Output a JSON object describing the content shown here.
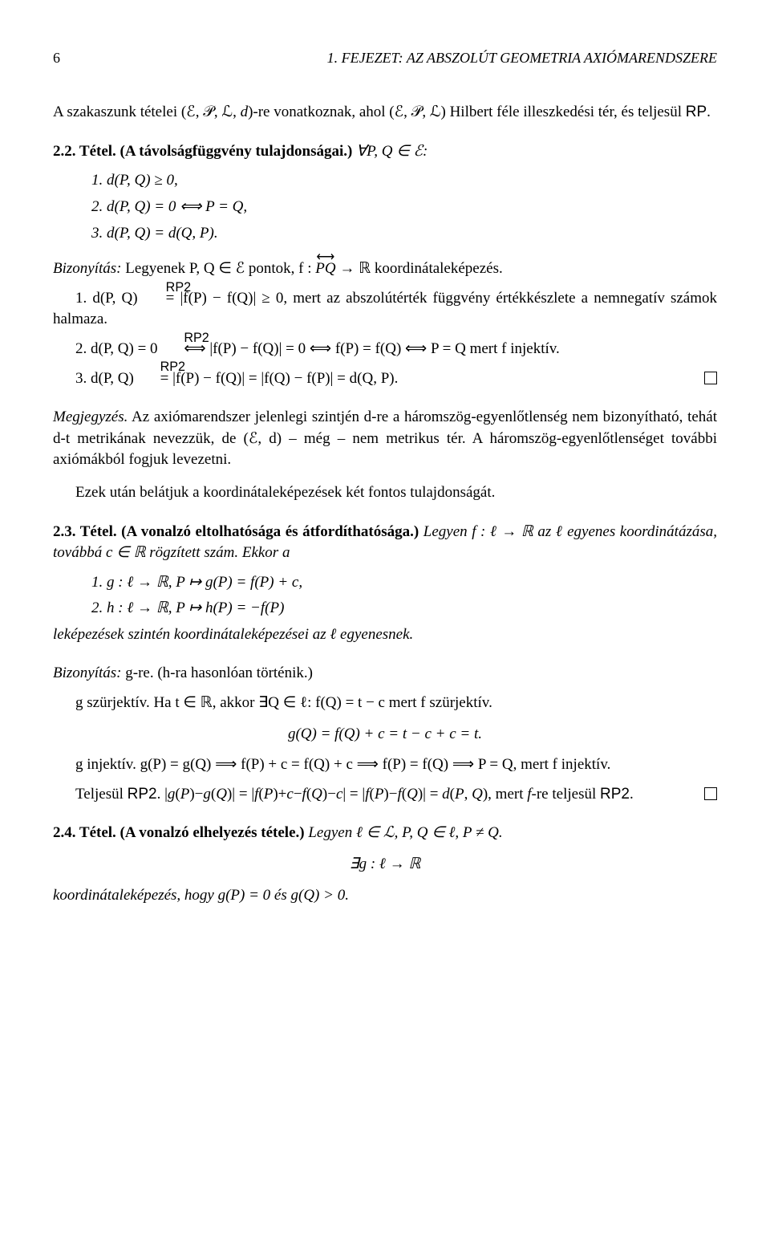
{
  "page_number": "6",
  "chapter_header": "1. FEJEZET:  AZ ABSZOLÚT GEOMETRIA AXIÓMARENDSZERE",
  "intro": "A szakaszunk tételei (ℰ, 𝒫, ℒ, d)-re vonatkoznak, ahol (ℰ, 𝒫, ℒ) Hilbert féle illeszkedési tér, és teljesül RP.",
  "thm22_label": "2.2. Tétel. (A távolságfüggvény tulajdonságai.)",
  "thm22_tail": " ∀P, Q ∈ ℰ:",
  "thm22_i1": "1.  d(P, Q) ≥ 0,",
  "thm22_i2": "2.  d(P, Q) = 0 ⟺ P = Q,",
  "thm22_i3": "3.  d(P, Q) = d(Q, P).",
  "proof22_lead": "Bizonyítás:",
  "proof22_intro": " Legyenek P, Q ∈ ℰ pontok, f : ",
  "proof22_intro_tail": " → ℝ koordinátaleképezés.",
  "proof22_line1_a": "1. d(P, Q) ",
  "proof22_line1_b": " |f(P) − f(Q)| ≥ 0, mert az abszolútérték függvény értékkészlete a nemnegatív számok halmaza.",
  "proof22_line2_a": "2. d(P, Q) = 0 ",
  "proof22_line2_b": " |f(P) − f(Q)| = 0 ⟺ f(P) = f(Q) ⟺ P = Q mert f injektív.",
  "proof22_line3_a": "3. d(P, Q) ",
  "proof22_line3_b": " |f(P) − f(Q)| = |f(Q) − f(P)| = d(Q, P).",
  "remark_label": "Megjegyzés.",
  "remark_body": " Az axiómarendszer jelenlegi szintjén d-re a háromszög-egyenlőtlenség nem bizonyítható, tehát d-t metrikának nevezzük, de (ℰ, d) – még – nem metrikus tér. A háromszög-egyenlőtlenséget további axiómákból fogjuk levezetni.",
  "after_remark": "Ezek után belátjuk a koordinátaleképezések két fontos tulajdonságát.",
  "thm23_label": "2.3. Tétel. (A vonalzó eltolhatósága és átfordíthatósága.)",
  "thm23_body": " Legyen f : ℓ → ℝ az ℓ egyenes koordinátázása, továbbá c ∈ ℝ rögzített szám. Ekkor a",
  "thm23_i1": "1.  g : ℓ → ℝ, P ↦ g(P) = f(P) + c,",
  "thm23_i2": "2.  h : ℓ → ℝ, P ↦ h(P) = −f(P)",
  "thm23_tail": "leképezések szintén koordinátaleképezései az ℓ egyenesnek.",
  "proof23_lead": "Bizonyítás:",
  "proof23_intro": " g-re. (h-ra hasonlóan történik.)",
  "proof23_surj": "g szürjektív. Ha t ∈ ℝ, akkor ∃Q ∈ ℓ: f(Q) = t − c mert f szürjektív.",
  "proof23_eq": "g(Q) = f(Q) + c = t − c + c = t.",
  "proof23_inj": "g injektív. g(P) = g(Q)  ⟹  f(P) + c = f(Q) + c  ⟹  f(P) = f(Q)  ⟹  P = Q, mert f injektív.",
  "proof23_rp2": "Teljesül RP2. |g(P)−g(Q)| = |f(P)+c−f(Q)−c| = |f(P)−f(Q)| = d(P, Q), mert f-re teljesül RP2.",
  "thm24_label": "2.4. Tétel. (A vonalzó elhelyezés tétele.)",
  "thm24_body": " Legyen ℓ ∈ ℒ, P, Q ∈ ℓ, P ≠ Q.",
  "thm24_eq": "∃g : ℓ → ℝ",
  "thm24_tail": "koordinátaleképezés, hogy g(P) = 0 és g(Q) > 0.",
  "rp_label": "RP",
  "rp2_label": "RP2",
  "eq_sym": "=",
  "iff_sym": "⟺",
  "pq_line": "PQ",
  "dbl_arrow": "⟷"
}
